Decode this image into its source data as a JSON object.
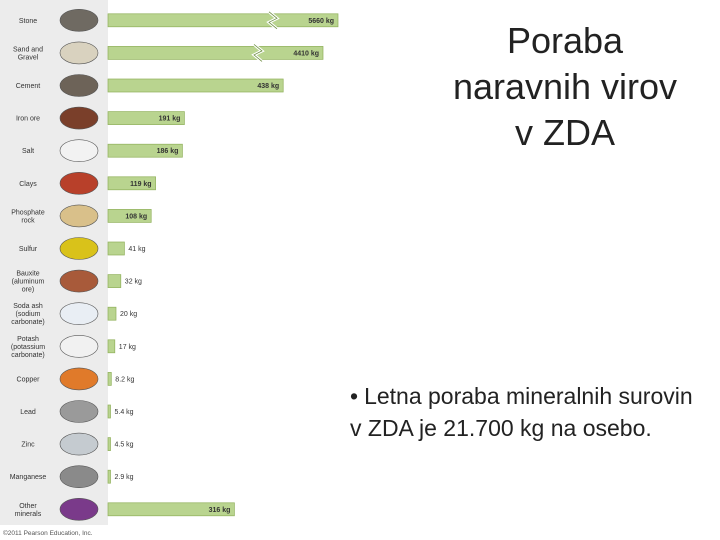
{
  "slide": {
    "title_lines": [
      "Poraba",
      "naravnih virov",
      "v ZDA"
    ],
    "bullet": "Letna poraba mineralnih surovin v ZDA je 21.700 kg na osebo."
  },
  "copyright": "©2011 Pearson Education, Inc.",
  "colors": {
    "bar": "#b9d48f",
    "bar_edge": "#8fb05a",
    "sidebar": "#ececec"
  },
  "chart_data": {
    "type": "bar",
    "orientation": "horizontal",
    "categories": [
      [
        "Stone"
      ],
      [
        "Sand and",
        "Gravel"
      ],
      [
        "Cement"
      ],
      [
        "Iron ore"
      ],
      [
        "Salt"
      ],
      [
        "Clays"
      ],
      [
        "Phosphate",
        "rock"
      ],
      [
        "Sulfur"
      ],
      [
        "Bauxite",
        "(aluminum",
        "ore)"
      ],
      [
        "Soda ash",
        "(sodium",
        "carbonate)"
      ],
      [
        "Potash",
        "(potassium",
        "carbonate)"
      ],
      [
        "Copper"
      ],
      [
        "Lead"
      ],
      [
        "Zinc"
      ],
      [
        "Manganese"
      ],
      [
        "Other",
        "minerals"
      ]
    ],
    "values": [
      5660,
      4410,
      438,
      191,
      186,
      119,
      108,
      41,
      32,
      20,
      17,
      8.2,
      5.4,
      4.5,
      2.9,
      316
    ],
    "value_labels": [
      "5660 kg",
      "4410 kg",
      "438 kg",
      "191 kg",
      "186 kg",
      "119 kg",
      "108 kg",
      "41 kg",
      "32 kg",
      "20 kg",
      "17 kg",
      "8.2 kg",
      "5.4 kg",
      "4.5 kg",
      "2.9 kg",
      "316 kg"
    ],
    "broken_bars": [
      0,
      1
    ],
    "icons": [
      "stone-icon",
      "sand-gravel-icon",
      "cement-icon",
      "iron-ore-icon",
      "salt-icon",
      "clay-brick-icon",
      "phosphate-rock-icon",
      "sulfur-icon",
      "bauxite-icon",
      "soda-ash-icon",
      "potash-icon",
      "copper-icon",
      "lead-icon",
      "zinc-icon",
      "manganese-icon",
      "other-minerals-icon"
    ],
    "icon_colors": [
      "#6f6a62",
      "#d9d2bf",
      "#6d6358",
      "#7a3f2a",
      "#f2f2f2",
      "#b8402a",
      "#d9c08a",
      "#d9c21a",
      "#a85a3a",
      "#e9eef4",
      "#f1f1f1",
      "#e07a2a",
      "#9a9a9a",
      "#c5cbd0",
      "#8a8a8a",
      "#7a3a8a"
    ]
  }
}
